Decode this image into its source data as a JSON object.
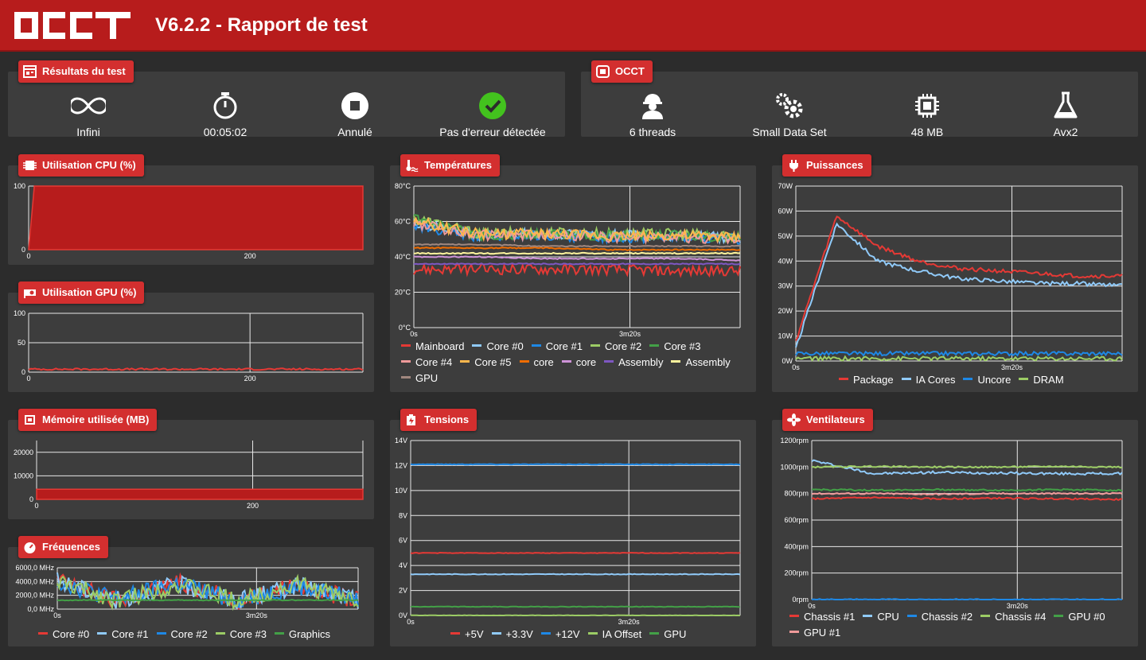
{
  "header": {
    "logo": "OCCT",
    "title": "V6.2.2 - Rapport de test"
  },
  "results": {
    "title": "Résultats du test",
    "items": [
      {
        "icon": "infinity-icon",
        "label": "Infini"
      },
      {
        "icon": "stopwatch-icon",
        "label": "00:05:02"
      },
      {
        "icon": "stop-icon",
        "label": "Annulé"
      },
      {
        "icon": "check-circle-icon",
        "label": "Pas d'erreur détectée"
      }
    ]
  },
  "occt": {
    "title": "OCCT",
    "items": [
      {
        "icon": "worker-icon",
        "label": "6 threads"
      },
      {
        "icon": "gears-icon",
        "label": "Small Data Set"
      },
      {
        "icon": "chip-icon",
        "label": "48 MB"
      },
      {
        "icon": "flask-icon",
        "label": "Avx2"
      }
    ]
  },
  "panels": {
    "cpu": {
      "title": "Utilisation CPU (%)"
    },
    "gpu": {
      "title": "Utilisation GPU (%)"
    },
    "mem": {
      "title": "Mémoire utilisée (MB)"
    },
    "freq": {
      "title": "Fréquences"
    },
    "temp": {
      "title": "Températures"
    },
    "volt": {
      "title": "Tensions"
    },
    "power": {
      "title": "Puissances"
    },
    "fans": {
      "title": "Ventilateurs"
    }
  },
  "chart_data": [
    {
      "id": "cpu",
      "type": "area",
      "title": "Utilisation CPU (%)",
      "yticks": [
        "0",
        "100"
      ],
      "xticks": [
        "0",
        "200"
      ],
      "ylim": [
        0,
        100
      ],
      "xlim": [
        0,
        302
      ],
      "series": [
        {
          "values": [
            0,
            100,
            100,
            100,
            100,
            100
          ],
          "color": "#b71c1c"
        }
      ]
    },
    {
      "id": "gpu",
      "type": "line",
      "title": "Utilisation GPU (%)",
      "yticks": [
        "0",
        "50",
        "100"
      ],
      "xticks": [
        "0",
        "200"
      ],
      "ylim": [
        0,
        100
      ],
      "xlim": [
        0,
        302
      ],
      "series": [
        {
          "values": [
            5,
            5,
            5,
            5,
            5,
            5
          ],
          "color": "#e53935"
        }
      ]
    },
    {
      "id": "mem",
      "type": "area",
      "title": "Mémoire utilisée (MB)",
      "yticks": [
        "0",
        "10000",
        "20000"
      ],
      "xticks": [
        "0",
        "200"
      ],
      "ylim": [
        0,
        25000
      ],
      "xlim": [
        0,
        302
      ],
      "series": [
        {
          "values": [
            4300,
            4300,
            4300,
            4300,
            4300
          ],
          "color": "#b71c1c"
        }
      ]
    },
    {
      "id": "freq",
      "type": "line",
      "title": "Fréquences",
      "yticks": [
        "0,0 MHz",
        "2000,0 MHz",
        "4000,0 MHz",
        "6000,0 MHz"
      ],
      "xticks": [
        "0s",
        "3m20s"
      ],
      "ylim": [
        0,
        6000
      ],
      "xlim": [
        0,
        302
      ],
      "series": [
        {
          "name": "Core #0",
          "color": "#e53935",
          "values": [
            4200,
            1200,
            3800,
            1300,
            3500,
            1200
          ]
        },
        {
          "name": "Core #1",
          "color": "#90caf9",
          "values": [
            4100,
            1300,
            3600,
            1200,
            3400,
            1300
          ]
        },
        {
          "name": "Core #2",
          "color": "#1e88e5",
          "values": [
            4000,
            1400,
            3700,
            1300,
            3300,
            1400
          ]
        },
        {
          "name": "Core #3",
          "color": "#9ccc65",
          "values": [
            3900,
            1300,
            3500,
            1200,
            3600,
            1200
          ]
        },
        {
          "name": "Graphics",
          "color": "#43a047",
          "values": [
            1300,
            1300,
            1300,
            1300,
            1300,
            1300
          ]
        }
      ]
    },
    {
      "id": "temp",
      "type": "line",
      "title": "Températures",
      "yticks": [
        "0°C",
        "20°C",
        "40°C",
        "60°C",
        "80°C"
      ],
      "xticks": [
        "0s",
        "3m20s"
      ],
      "ylim": [
        0,
        80
      ],
      "xlim": [
        0,
        302
      ],
      "series": [
        {
          "name": "Mainboard",
          "color": "#e53935",
          "values": [
            33,
            33,
            33,
            33,
            32,
            32
          ]
        },
        {
          "name": "Core #0",
          "color": "#90caf9",
          "values": [
            60,
            52,
            53,
            52,
            52,
            51
          ]
        },
        {
          "name": "Core #1",
          "color": "#1e88e5",
          "values": [
            58,
            51,
            52,
            51,
            51,
            50
          ]
        },
        {
          "name": "Core #2",
          "color": "#9ccc65",
          "values": [
            62,
            53,
            54,
            53,
            53,
            52
          ]
        },
        {
          "name": "Core #3",
          "color": "#43a047",
          "values": [
            61,
            52,
            53,
            52,
            52,
            51
          ]
        },
        {
          "name": "Core #4",
          "color": "#ef9a9a",
          "values": [
            59,
            52,
            52,
            51,
            51,
            50
          ]
        },
        {
          "name": "Core #5",
          "color": "#ffb74d",
          "values": [
            60,
            53,
            53,
            52,
            52,
            51
          ]
        },
        {
          "name": "core",
          "color": "#ef6c00",
          "values": [
            45,
            45,
            45,
            44,
            44,
            44
          ]
        },
        {
          "name": "core",
          "color": "#ce93d8",
          "values": [
            40,
            40,
            39,
            39,
            39,
            38
          ]
        },
        {
          "name": "Assembly",
          "color": "#7e57c2",
          "values": [
            36,
            36,
            36,
            36,
            36,
            36
          ]
        },
        {
          "name": "Assembly",
          "color": "#fff59d",
          "values": [
            42,
            42,
            42,
            42,
            42,
            42
          ]
        },
        {
          "name": "GPU",
          "color": "#a1887f",
          "values": [
            47,
            47,
            46,
            46,
            46,
            46
          ]
        }
      ]
    },
    {
      "id": "volt",
      "type": "line",
      "title": "Tensions",
      "yticks": [
        "0V",
        "2V",
        "4V",
        "6V",
        "8V",
        "10V",
        "12V",
        "14V"
      ],
      "xticks": [
        "0s",
        "3m20s"
      ],
      "ylim": [
        0,
        14
      ],
      "xlim": [
        0,
        302
      ],
      "series": [
        {
          "name": "+5V",
          "color": "#e53935",
          "values": [
            5.0,
            5.0,
            5.0,
            5.0,
            5.0
          ]
        },
        {
          "name": "+3.3V",
          "color": "#90caf9",
          "values": [
            3.3,
            3.3,
            3.3,
            3.3,
            3.3
          ]
        },
        {
          "name": "+12V",
          "color": "#1e88e5",
          "values": [
            12.1,
            12.1,
            12.1,
            12.1,
            12.1
          ]
        },
        {
          "name": "IA Offset",
          "color": "#9ccc65",
          "values": [
            0,
            0,
            0,
            0,
            0
          ]
        },
        {
          "name": "GPU",
          "color": "#43a047",
          "values": [
            0.7,
            0.7,
            0.7,
            0.7,
            0.7
          ]
        }
      ]
    },
    {
      "id": "power",
      "type": "line",
      "title": "Puissances",
      "yticks": [
        "0W",
        "10W",
        "20W",
        "30W",
        "40W",
        "50W",
        "60W",
        "70W"
      ],
      "xticks": [
        "0s",
        "3m20s"
      ],
      "ylim": [
        0,
        70
      ],
      "xlim": [
        0,
        302
      ],
      "series": [
        {
          "name": "Package",
          "color": "#e53935",
          "values": [
            8,
            58,
            46,
            40,
            37,
            36,
            35,
            34,
            34
          ]
        },
        {
          "name": "IA Cores",
          "color": "#90caf9",
          "values": [
            5,
            55,
            40,
            36,
            33,
            32,
            31,
            31,
            30
          ]
        },
        {
          "name": "Uncore",
          "color": "#1e88e5",
          "values": [
            3,
            3,
            3,
            3,
            3,
            3,
            3,
            3,
            3
          ]
        },
        {
          "name": "DRAM",
          "color": "#9ccc65",
          "values": [
            1,
            1,
            1,
            1,
            1,
            1,
            1,
            1,
            1
          ]
        }
      ]
    },
    {
      "id": "fans",
      "type": "line",
      "title": "Ventilateurs",
      "yticks": [
        "0rpm",
        "200rpm",
        "400rpm",
        "600rpm",
        "800rpm",
        "1000rpm",
        "1200rpm"
      ],
      "xticks": [
        "0s",
        "3m20s"
      ],
      "ylim": [
        0,
        1200
      ],
      "xlim": [
        0,
        302
      ],
      "series": [
        {
          "name": "Chassis #1",
          "color": "#e53935",
          "values": [
            760,
            770,
            760,
            765,
            760,
            755
          ]
        },
        {
          "name": "CPU",
          "color": "#90caf9",
          "values": [
            1050,
            950,
            960,
            955,
            950,
            950
          ]
        },
        {
          "name": "Chassis #2",
          "color": "#1e88e5",
          "values": [
            0,
            0,
            0,
            0,
            0,
            0
          ]
        },
        {
          "name": "Chassis #4",
          "color": "#9ccc65",
          "values": [
            1000,
            1005,
            1000,
            1000,
            1005,
            1000
          ]
        },
        {
          "name": "GPU #0",
          "color": "#43a047",
          "values": [
            830,
            825,
            830,
            825,
            830,
            825
          ]
        },
        {
          "name": "GPU #1",
          "color": "#ef9a9a",
          "values": [
            800,
            800,
            795,
            800,
            800,
            800
          ]
        }
      ]
    }
  ]
}
